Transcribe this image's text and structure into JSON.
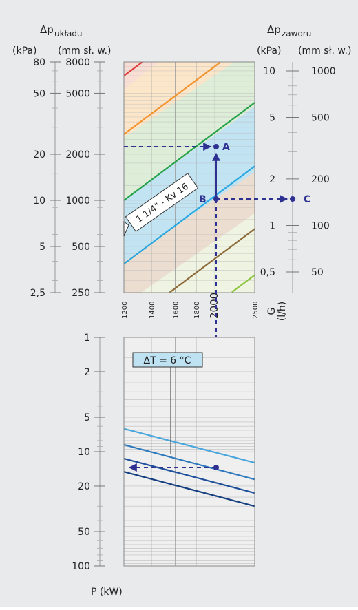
{
  "chart_data": [
    {
      "type": "line",
      "name": "valve-pressure-drop-nomogram",
      "title": "",
      "yaxis_left": {
        "label": "Δp",
        "label_sub": "układu",
        "units": [
          "(kPa)",
          "(mm sł. w.)"
        ],
        "scale": "log",
        "ticks_kpa": [
          "80",
          "50",
          "20",
          "10",
          "5",
          "2,5"
        ],
        "ticks_mm": [
          "8000",
          "5000",
          "2000",
          "1000",
          "500",
          "250"
        ],
        "range_mm": [
          250,
          8000
        ]
      },
      "yaxis_right": {
        "label": "Δp",
        "label_sub": "zaworu",
        "units": [
          "(kPa)",
          "(mm sł. w.)"
        ],
        "scale": "log",
        "ticks_kpa": [
          "10",
          "5",
          "2",
          "1",
          "0,5"
        ],
        "ticks_mm": [
          "1000",
          "500",
          "200",
          "100",
          "50"
        ]
      },
      "xaxis": {
        "label": "G",
        "unit": "(l/h)",
        "scale": "log",
        "ticks": [
          "1200",
          "1400",
          "1600",
          "1800",
          "2000",
          "2500"
        ],
        "range": [
          1200,
          2500
        ]
      },
      "valve_label": "1 1/4\" - Kv 16",
      "kv_lines": [
        {
          "color": "#e03a3a"
        },
        {
          "color": "#f3922b"
        },
        {
          "color": "#24a24a"
        },
        {
          "color": "#27a6e0"
        },
        {
          "color": "#8c6a3a"
        },
        {
          "color": "#8cc63f"
        }
      ],
      "points": [
        {
          "label": "A",
          "flow": 2000,
          "dp_mm": 2200
        },
        {
          "label": "B",
          "flow": 2000,
          "dp_mm": 1000
        },
        {
          "label": "C",
          "dp_mm": 150
        }
      ]
    },
    {
      "type": "line",
      "name": "power-nomogram",
      "title": "",
      "xlabel": "P (kW)",
      "yaxis": {
        "scale": "log",
        "ticks": [
          "1",
          "2",
          "5",
          "10",
          "20",
          "50",
          "100"
        ],
        "range": [
          1,
          100
        ]
      },
      "delta_t_label": "ΔT = 6 °C",
      "delta_lines": [
        {
          "color": "#4aa6dd",
          "y_at_1200": 6.3,
          "y_at_2500": 12.5
        },
        {
          "color": "#2e79bd",
          "y_at_1200": 8.7,
          "y_at_2500": 17.5
        },
        {
          "color": "#1f4f9a",
          "y_at_1200": 11.5,
          "y_at_2500": 23
        },
        {
          "color": "#163f80",
          "y_at_1200": 15,
          "y_at_2500": 30
        }
      ],
      "reading": {
        "flow": 2000,
        "power_kw": 14.6
      }
    }
  ]
}
